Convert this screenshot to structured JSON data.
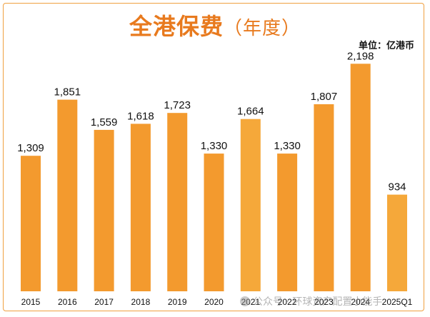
{
  "chart_data": {
    "type": "bar",
    "title": "全港保费",
    "subtitle": "（年度）",
    "unit_label": "单位：亿港币",
    "categories": [
      "2015",
      "2016",
      "2017",
      "2018",
      "2019",
      "2020",
      "2021",
      "2022",
      "2023",
      "2024",
      "2025Q1"
    ],
    "values": [
      1309,
      1851,
      1559,
      1618,
      1723,
      1330,
      1664,
      1330,
      1807,
      2198,
      934
    ],
    "value_labels": [
      "1,309",
      "1,851",
      "1,559",
      "1,618",
      "1,723",
      "1,330",
      "1,664",
      "1,330",
      "1,807",
      "2,198",
      "934"
    ],
    "ylim": [
      0,
      2400
    ],
    "xlabel": "",
    "ylabel": "",
    "grid": false,
    "colors": {
      "bar": "#f39a2e",
      "bar_light": "#f5a83a",
      "title": "#e87a1e",
      "label": "#111111"
    }
  },
  "watermark": {
    "text": "公众号 · 环球资产配置小能手"
  }
}
